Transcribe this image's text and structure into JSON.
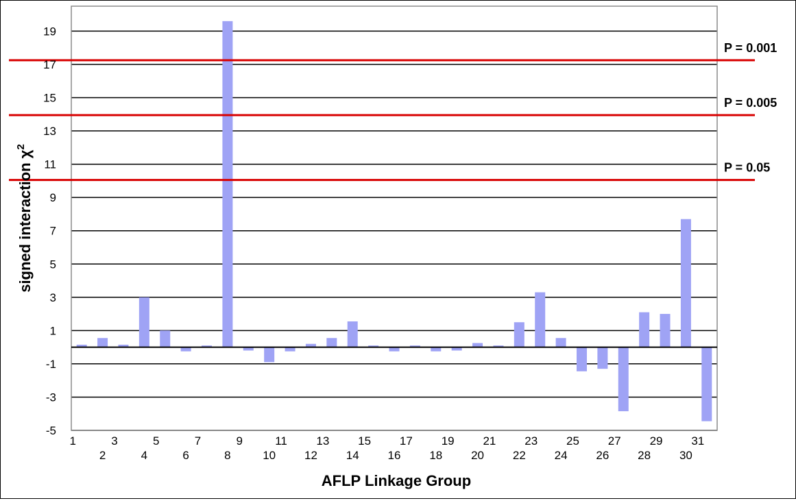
{
  "chart_data": {
    "type": "bar",
    "title": "",
    "xlabel": "AFLP Linkage Group",
    "ylabel": "signed interaction χ",
    "ylabel_superscript": "2",
    "ylim": [
      -5,
      20
    ],
    "yticks": [
      19,
      17,
      15,
      13,
      11,
      9,
      7,
      5,
      3,
      1,
      -1,
      -3,
      -5
    ],
    "grid": true,
    "categories": [
      "1",
      "2",
      "3",
      "4",
      "5",
      "6",
      "7",
      "8",
      "9",
      "10",
      "11",
      "12",
      "13",
      "14",
      "15",
      "16",
      "17",
      "18",
      "19",
      "20",
      "21",
      "22",
      "23",
      "24",
      "25",
      "26",
      "27",
      "28",
      "29",
      "30",
      "31"
    ],
    "values": [
      0.15,
      0.55,
      0.15,
      3.0,
      1.0,
      -0.25,
      0.1,
      19.6,
      -0.2,
      -0.9,
      -0.25,
      0.2,
      0.55,
      1.55,
      0.1,
      -0.25,
      0.1,
      -0.25,
      -0.2,
      0.25,
      0.1,
      1.5,
      3.3,
      0.55,
      -1.45,
      -1.3,
      -3.85,
      2.1,
      2.0,
      7.7,
      -4.45
    ],
    "bar_color": "#9fa3f5",
    "reference_lines": [
      {
        "label": "P = 0.001",
        "value": 17.25,
        "color": "#d80000"
      },
      {
        "label": "P = 0.005",
        "value": 13.95,
        "color": "#d80000"
      },
      {
        "label": "P = 0.05",
        "value": 10.05,
        "color": "#d80000"
      }
    ]
  }
}
